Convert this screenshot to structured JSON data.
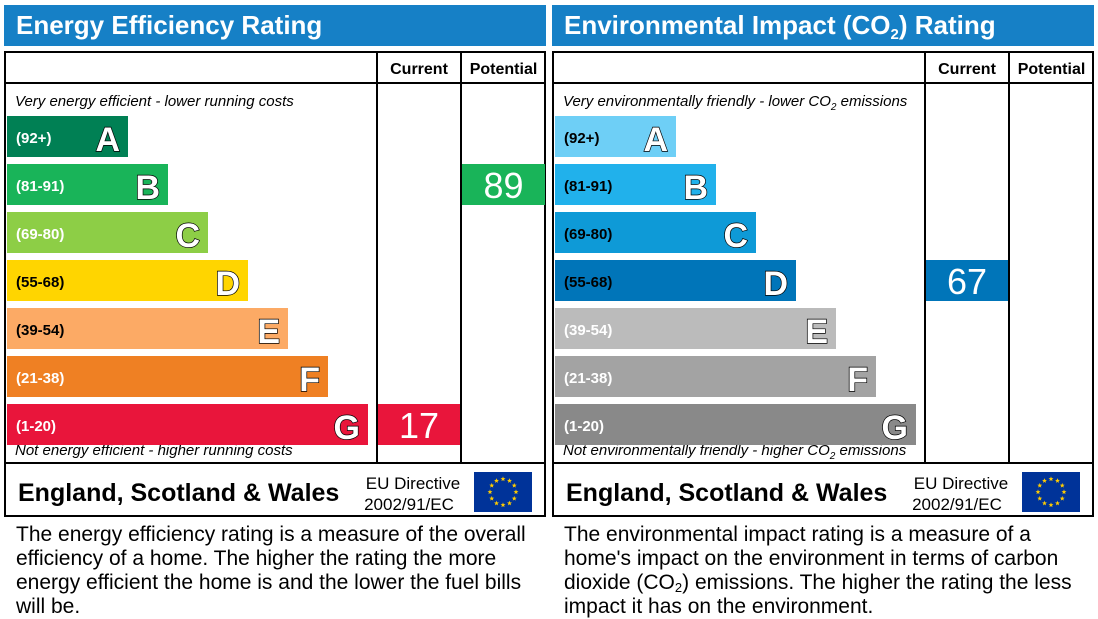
{
  "chart_data": [
    {
      "type": "bar",
      "title": "Energy Efficiency Rating",
      "column_headers": [
        "Current",
        "Potential"
      ],
      "top_note": "Very energy efficient - lower running costs",
      "bottom_note": "Not energy efficient - higher running costs",
      "bands": [
        {
          "letter": "A",
          "range": "(92+)",
          "color": "#008054"
        },
        {
          "letter": "B",
          "range": "(81-91)",
          "color": "#19b459"
        },
        {
          "letter": "C",
          "range": "(69-80)",
          "color": "#8dce46"
        },
        {
          "letter": "D",
          "range": "(55-68)",
          "color": "#ffd500"
        },
        {
          "letter": "E",
          "range": "(39-54)",
          "color": "#fcaa65"
        },
        {
          "letter": "F",
          "range": "(21-38)",
          "color": "#ef8023"
        },
        {
          "letter": "G",
          "range": "(1-20)",
          "color": "#e9153b"
        }
      ],
      "current": {
        "value": 17,
        "band": "G",
        "color": "#e9153b"
      },
      "potential": {
        "value": 89,
        "band": "B",
        "color": "#19b459"
      },
      "region": "England, Scotland & Wales",
      "directive_line1": "EU Directive",
      "directive_line2": "2002/91/EC",
      "caption": "The energy efficiency rating is a measure of the overall efficiency of a home. The higher the rating the more energy efficient the home is and the lower the fuel bills will be."
    },
    {
      "type": "bar",
      "title": "Environmental Impact (CO2) Rating",
      "column_headers": [
        "Current",
        "Potential"
      ],
      "top_note": "Very environmentally friendly - lower CO2 emissions",
      "bottom_note": "Not environmentally friendly - higher CO2 emissions",
      "bands": [
        {
          "letter": "A",
          "range": "(92+)",
          "color": "#6ecff6"
        },
        {
          "letter": "B",
          "range": "(81-91)",
          "color": "#21b1eb"
        },
        {
          "letter": "C",
          "range": "(69-80)",
          "color": "#0e9ad7"
        },
        {
          "letter": "D",
          "range": "(55-68)",
          "color": "#0075b9"
        },
        {
          "letter": "E",
          "range": "(39-54)",
          "color": "#bbbbbb"
        },
        {
          "letter": "F",
          "range": "(21-38)",
          "color": "#a3a3a3"
        },
        {
          "letter": "G",
          "range": "(1-20)",
          "color": "#898989"
        }
      ],
      "current": {
        "value": 67,
        "band": "D",
        "color": "#0075b9"
      },
      "potential": null,
      "region": "England, Scotland & Wales",
      "directive_line1": "EU Directive",
      "directive_line2": "2002/91/EC",
      "caption": "The environmental impact rating is a measure of a home's impact on the environment in terms of carbon dioxide (CO2) emissions. The higher the rating the less impact it has on the environment."
    }
  ],
  "eu_flag_color": "#003399",
  "eu_star_color": "#ffcc00"
}
